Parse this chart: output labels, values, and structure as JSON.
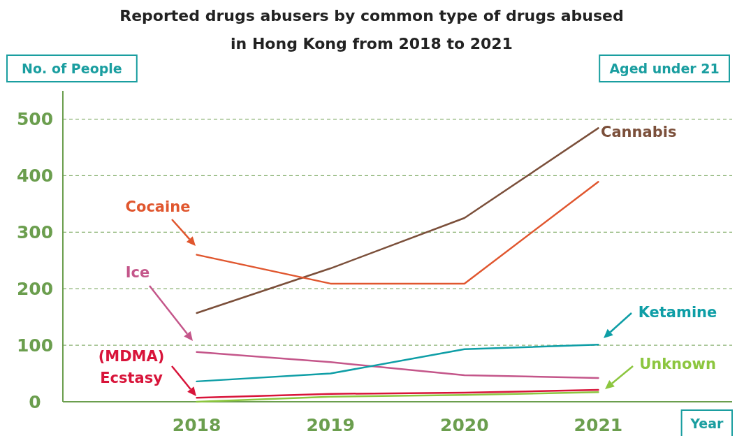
{
  "chart_data": {
    "type": "line",
    "title": "Reported drugs abusers by common type of drugs abused\nin Hong Kong from 2018 to 2021",
    "xlabel": "Year",
    "ylabel": "No. of People",
    "annotations": [
      "Aged under 21"
    ],
    "x": [
      2018,
      2019,
      2020,
      2021
    ],
    "xlim": [
      2017,
      2022
    ],
    "xticks": [
      2018,
      2019,
      2020,
      2021
    ],
    "ylim": [
      0,
      550
    ],
    "yticks": [
      0,
      100,
      200,
      300,
      400,
      500
    ],
    "grid": "y",
    "marker": "none",
    "line_style": "solid",
    "series": [
      {
        "name": "Cannabis",
        "color": "#7b4f3a",
        "values": [
          157,
          236,
          325,
          484
        ]
      },
      {
        "name": "Cocaine",
        "color": "#e0562e",
        "values": [
          260,
          209,
          209,
          389
        ]
      },
      {
        "name": "Ice",
        "color": "#c4568a",
        "values": [
          88,
          70,
          47,
          42
        ]
      },
      {
        "name": "Ketamine",
        "color": "#0e9ea6",
        "values": [
          36,
          50,
          93,
          101
        ]
      },
      {
        "name": "(MDMA) Ecstasy",
        "color": "#d8143a",
        "values": [
          7,
          14,
          16,
          21
        ]
      },
      {
        "name": "Unknown",
        "color": "#8cc63f",
        "values": [
          0,
          9,
          12,
          17
        ]
      }
    ]
  }
}
